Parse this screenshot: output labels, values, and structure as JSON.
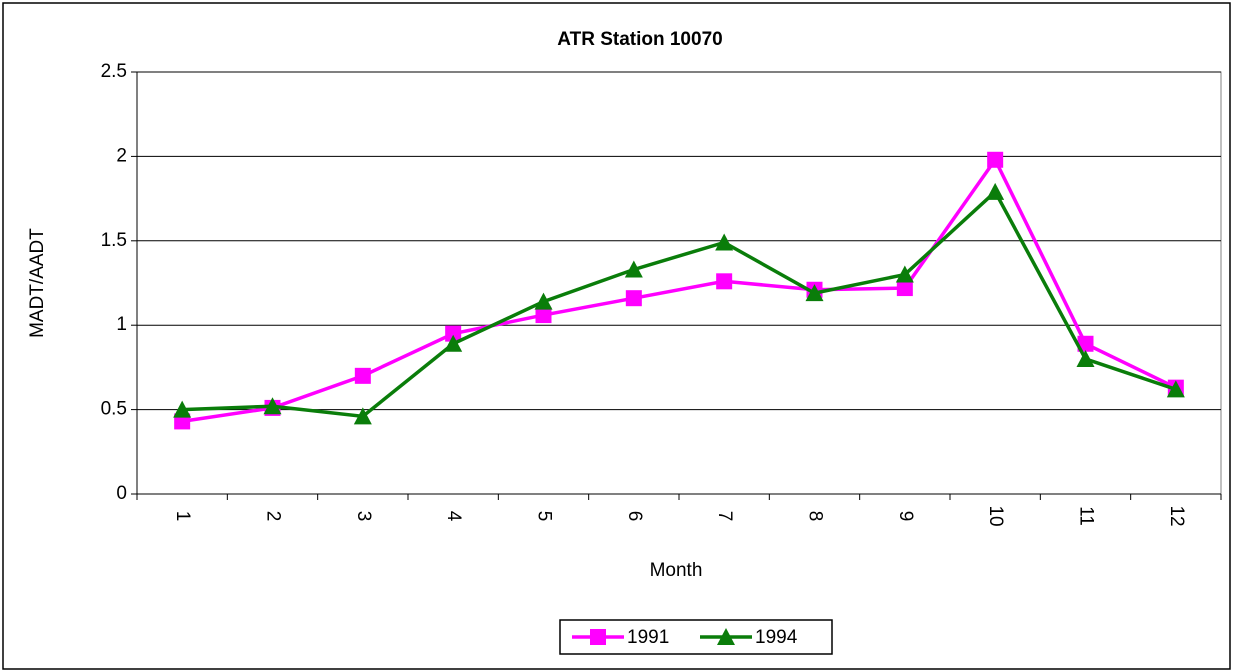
{
  "chart_data": {
    "type": "line",
    "title": "ATR Station 10070",
    "x_label": "Month",
    "y_label": "MADT/AADT",
    "categories": [
      "1",
      "2",
      "3",
      "4",
      "5",
      "6",
      "7",
      "8",
      "9",
      "10",
      "11",
      "12"
    ],
    "series": [
      {
        "name": "1991",
        "color": "#ff00ff",
        "marker": "square",
        "values": [
          0.43,
          0.51,
          0.7,
          0.95,
          1.06,
          1.16,
          1.26,
          1.21,
          1.22,
          1.98,
          0.89,
          0.63
        ]
      },
      {
        "name": "1994",
        "color": "#0a7d0a",
        "marker": "triangle",
        "values": [
          0.5,
          0.52,
          0.46,
          0.89,
          1.14,
          1.33,
          1.49,
          1.19,
          1.3,
          1.79,
          0.8,
          0.62
        ]
      }
    ],
    "ylim": [
      0,
      2.5
    ],
    "yticks": [
      0,
      0.5,
      1,
      1.5,
      2,
      2.5
    ],
    "grid": true,
    "legend": "bottom"
  }
}
